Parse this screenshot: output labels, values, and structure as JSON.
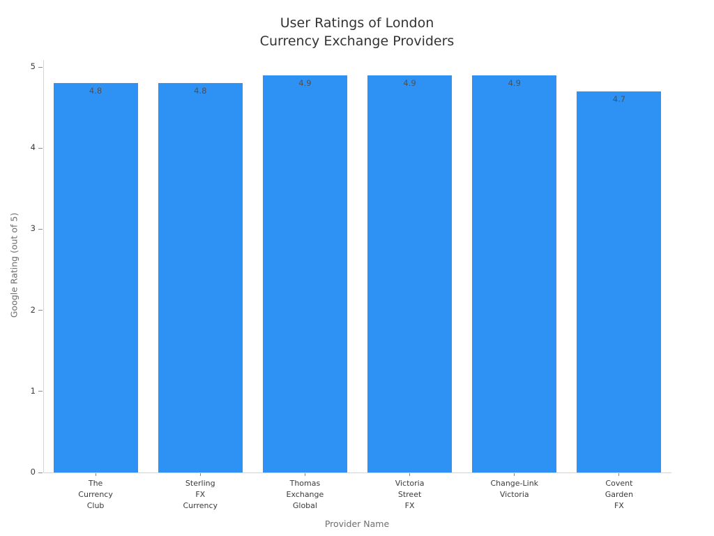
{
  "colors": {
    "bar": "#2E92F5",
    "spine": "#d4d4d4",
    "tick": "#8a8a8a",
    "tick_label": "#3a3a3a",
    "axis_title": "#6e6e6e",
    "title": "#333333",
    "value_label": "#4f4f4f",
    "background": "#ffffff"
  },
  "chart_data": {
    "type": "bar",
    "title": "User Ratings of London\nCurrency Exchange Providers",
    "xlabel": "Provider Name",
    "ylabel": "Google Rating (out of 5)",
    "categories": [
      "The\nCurrency\nClub",
      "Sterling\nFX\nCurrency",
      "Thomas\nExchange\nGlobal",
      "Victoria\nStreet\nFX",
      "Change-Link\nVictoria",
      "Covent\nGarden\nFX"
    ],
    "values": [
      4.8,
      4.8,
      4.9,
      4.9,
      4.9,
      4.7
    ],
    "value_labels": [
      "4.8",
      "4.8",
      "4.9",
      "4.9",
      "4.9",
      "4.7"
    ],
    "yticks": [
      "0",
      "1",
      "2",
      "3",
      "4",
      "5"
    ],
    "ylim": [
      0,
      5.09
    ],
    "grid": false,
    "legend_position": "none"
  }
}
